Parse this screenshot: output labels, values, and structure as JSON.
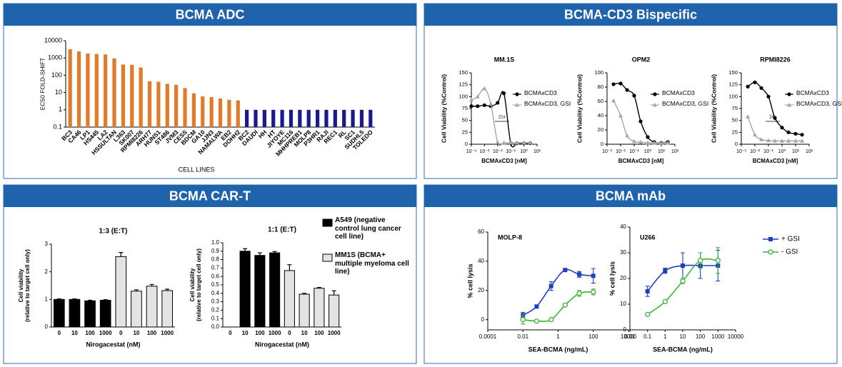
{
  "panels": [
    "BCMA ADC",
    "BCMA-CD3 Bispecific",
    "BCMA CAR-T",
    "BCMA mAb"
  ],
  "chart_data": [
    {
      "type": "bar",
      "ylabel": "EC50 FOLD-SHIFT",
      "xlabel": "CELL LINES",
      "log_y": true,
      "ylim": [
        0.1,
        10000
      ],
      "yticks": [
        0.1,
        1,
        10,
        100,
        1000,
        10000
      ],
      "categories": [
        "BC3",
        "CA46",
        "LP1",
        "HS445",
        "LA2",
        "HSSULTAN",
        "L363",
        "SK007",
        "RPMI8226",
        "ARH77",
        "HUNS1",
        "ST486",
        "JVM3",
        "CESS",
        "BDCM",
        "GA10",
        "JJN3",
        "NAMALWA",
        "EB2",
        "DOHH2",
        "BC2",
        "DAUDI",
        "HH",
        "HT",
        "JIYOYE",
        "MC116",
        "MHHPREB1",
        "MOLP8",
        "P3HR1",
        "RAJI",
        "REC1",
        "RL",
        "SC1",
        "SUDHL5",
        "TOLEDO"
      ],
      "values": [
        3200,
        2400,
        1800,
        1700,
        1600,
        950,
        420,
        400,
        280,
        45,
        42,
        32,
        28,
        18,
        9,
        6,
        5.5,
        4.5,
        3.8,
        3.5,
        1,
        1,
        1,
        1,
        1,
        1,
        1,
        1,
        1,
        1,
        1,
        1,
        1,
        1,
        1
      ],
      "colors": [
        "#e07b2a",
        "#e07b2a",
        "#e07b2a",
        "#e07b2a",
        "#e07b2a",
        "#e07b2a",
        "#e07b2a",
        "#e07b2a",
        "#e07b2a",
        "#e07b2a",
        "#e07b2a",
        "#e07b2a",
        "#e07b2a",
        "#e07b2a",
        "#e07b2a",
        "#e07b2a",
        "#e07b2a",
        "#e07b2a",
        "#e07b2a",
        "#e07b2a",
        "#1a1a8c",
        "#1a1a8c",
        "#1a1a8c",
        "#1a1a8c",
        "#1a1a8c",
        "#1a1a8c",
        "#1a1a8c",
        "#1a1a8c",
        "#1a1a8c",
        "#1a1a8c",
        "#1a1a8c",
        "#1a1a8c",
        "#1a1a8c",
        "#1a1a8c",
        "#1a1a8c"
      ]
    },
    {
      "type": "scatter",
      "title": "MM.1S",
      "xlabel": "BCMAxCD3 [nM]",
      "ylabel": "Cell Viability (%Control)",
      "log_x": true,
      "xlim": [
        0.0001,
        10
      ],
      "xticks": [
        {
          "value": 0.0001,
          "label": "10⁻⁴"
        },
        {
          "value": 0.001,
          "label": "10⁻³"
        },
        {
          "value": 0.01,
          "label": "10⁻²"
        },
        {
          "value": 0.1,
          "label": "10⁻¹"
        },
        {
          "value": 1,
          "label": "10⁰"
        },
        {
          "value": 10,
          "label": "10¹"
        }
      ],
      "ylim": [
        0,
        150
      ],
      "yticks": [
        0,
        25,
        50,
        75,
        100,
        125,
        150
      ],
      "x": [
        0.0001,
        0.0003,
        0.001,
        0.003,
        0.01,
        0.03,
        0.1,
        0.3,
        1,
        3
      ],
      "series": [
        {
          "name": "BCMAxCD3",
          "color": "#000000",
          "marker": "circle",
          "values": [
            80,
            80,
            82,
            80,
            87,
            107,
            2,
            2,
            2,
            2
          ]
        },
        {
          "name": "BCMAxCD3, GSI",
          "color": "#a6a6a6",
          "marker": "triangle",
          "values": [
            93,
            100,
            117,
            85,
            4,
            3,
            3,
            3,
            3,
            3
          ]
        }
      ],
      "annotation": "21x",
      "legend": "right"
    },
    {
      "type": "scatter",
      "title": "OPM2",
      "xlabel": "BCMAxCD3 [nM]",
      "ylabel": "Cell Viability (%Control)",
      "log_x": true,
      "xlim": [
        0.001,
        100
      ],
      "xticks": [
        {
          "value": 0.001,
          "label": "10⁻³"
        },
        {
          "value": 0.01,
          "label": "10⁻²"
        },
        {
          "value": 0.1,
          "label": "10⁻¹"
        },
        {
          "value": 1,
          "label": "10⁰"
        },
        {
          "value": 10,
          "label": "10¹"
        },
        {
          "value": 100,
          "label": "10²"
        }
      ],
      "ylim": [
        0,
        100
      ],
      "yticks": [
        0,
        20,
        40,
        60,
        80,
        100
      ],
      "x": [
        0.003,
        0.01,
        0.03,
        0.1,
        0.3,
        1,
        3,
        10,
        30
      ],
      "series": [
        {
          "name": "BCMAxCD3",
          "color": "#000000",
          "marker": "circle",
          "values": [
            84,
            85,
            76,
            68,
            32,
            10,
            3,
            2,
            3
          ]
        },
        {
          "name": "BCMAxCD3, GSI",
          "color": "#a6a6a6",
          "marker": "triangle",
          "values": [
            61,
            40,
            12,
            4,
            3,
            2,
            2,
            2,
            2
          ]
        }
      ],
      "legend": "right"
    },
    {
      "type": "scatter",
      "title": "RPMI8226",
      "xlabel": "BCMAxCD3 [nM]",
      "ylabel": "Cell Viability (%Control)",
      "log_x": true,
      "xlim": [
        0.001,
        100
      ],
      "xticks": [
        {
          "value": 0.001,
          "label": "10⁻³"
        },
        {
          "value": 0.01,
          "label": "10⁻²"
        },
        {
          "value": 0.1,
          "label": "10⁻¹"
        },
        {
          "value": 1,
          "label": "10⁰"
        },
        {
          "value": 10,
          "label": "10¹"
        },
        {
          "value": 100,
          "label": "10²"
        }
      ],
      "ylim": [
        0,
        150
      ],
      "yticks": [
        0,
        25,
        50,
        75,
        100,
        125,
        150
      ],
      "x": [
        0.003,
        0.01,
        0.03,
        0.1,
        0.3,
        1,
        3,
        10,
        30
      ],
      "series": [
        {
          "name": "BCMAxCD3",
          "color": "#000000",
          "marker": "circle",
          "values": [
            121,
            130,
            118,
            100,
            55,
            35,
            25,
            22,
            20
          ]
        },
        {
          "name": "BCMAxCD3, GSI",
          "color": "#a6a6a6",
          "marker": "triangle",
          "values": [
            58,
            20,
            10,
            8,
            7,
            7,
            7,
            7,
            7
          ]
        }
      ],
      "annotation": "24x",
      "legend": "right"
    },
    {
      "type": "grouped-bar",
      "xlabel": "Nirogacestat (nM)",
      "ylabel": [
        "Cell viability",
        "(relative to target cell only)"
      ],
      "categories": [
        "0",
        "10",
        "100",
        "1000"
      ],
      "subplots": [
        {
          "title": "1:3 (E:T)",
          "ylim": [
            0,
            3
          ],
          "yticks": [
            0,
            1,
            2,
            3
          ]
        },
        {
          "title": "1:1 (E:T)",
          "ylim": [
            0,
            1
          ],
          "yticks": [
            {
              "value": 0,
              "label": "0.0"
            },
            0.1,
            0.2,
            0.3,
            0.4,
            0.5,
            0.6,
            0.7,
            0.8,
            0.9,
            {
              "value": 1,
              "label": "1.0"
            }
          ]
        }
      ],
      "series": [
        {
          "name": "A549 (negative control lung cancer cell line)",
          "color": "#000000",
          "values": [
            [
              1,
              1,
              0.95,
              0.97
            ],
            [
              null,
              0.9,
              0.85,
              0.88
            ]
          ],
          "errors": [
            [
              0.02,
              0.02,
              0.02,
              0.02
            ],
            [
              null,
              0.03,
              0.03,
              0.015
            ]
          ]
        },
        {
          "name": "MM1S (BCMA+ multiple myeloma cell line)",
          "color": "#e3e3e3",
          "values": [
            [
              2.55,
              1.3,
              1.48,
              1.32
            ],
            [
              0.67,
              0.39,
              0.46,
              0.38
            ]
          ],
          "errors": [
            [
              0.15,
              0.05,
              0.06,
              0.05
            ],
            [
              0.07,
              0.01,
              0.01,
              0.05
            ]
          ]
        }
      ],
      "legend": "right"
    },
    {
      "type": "errorbar",
      "xlabel": "SEA-BCMA (ng/mL)",
      "ylabel": "% cell lysis",
      "log_x": true,
      "subplots": [
        {
          "title": "MOLP-8",
          "xlim": [
            0.0001,
            10000
          ],
          "xticks": [
            0.0001,
            0.01,
            1,
            100,
            10000
          ],
          "ylim": [
            -7,
            60
          ],
          "yticks": [
            0,
            20,
            40,
            60
          ],
          "x": [
            0.01,
            0.06,
            0.4,
            2.5,
            16,
            100
          ]
        },
        {
          "title": "U266",
          "xlim": [
            0.01,
            10000
          ],
          "xticks": [
            0.01,
            0.1,
            1,
            10,
            100,
            1000,
            10000
          ],
          "ylim": [
            0,
            40
          ],
          "yticks": [
            0,
            10,
            20,
            30,
            40
          ],
          "x": [
            0.1,
            1,
            10,
            100,
            1000
          ]
        }
      ],
      "series": [
        {
          "name": "+ GSI",
          "color": "#1f3fbf",
          "marker": "square",
          "values": [
            [
              3,
              9,
              23,
              34,
              31,
              30
            ],
            [
              15,
              23,
              25,
              25,
              25
            ]
          ],
          "errors": [
            [
              2,
              1,
              3,
              1,
              2,
              5
            ],
            [
              2,
              1,
              5,
              5,
              6
            ]
          ]
        },
        {
          "name": "- GSI",
          "color": "#3cb43c",
          "marker": "open-circle",
          "values": [
            [
              0,
              -1,
              0,
              10,
              18,
              19
            ],
            [
              6,
              11,
              19,
              27,
              27
            ]
          ],
          "errors": [
            [
              3,
              1,
              1,
              1,
              2,
              2
            ],
            [
              0.5,
              0.5,
              1,
              3,
              5
            ]
          ]
        }
      ],
      "legend": "right"
    }
  ]
}
